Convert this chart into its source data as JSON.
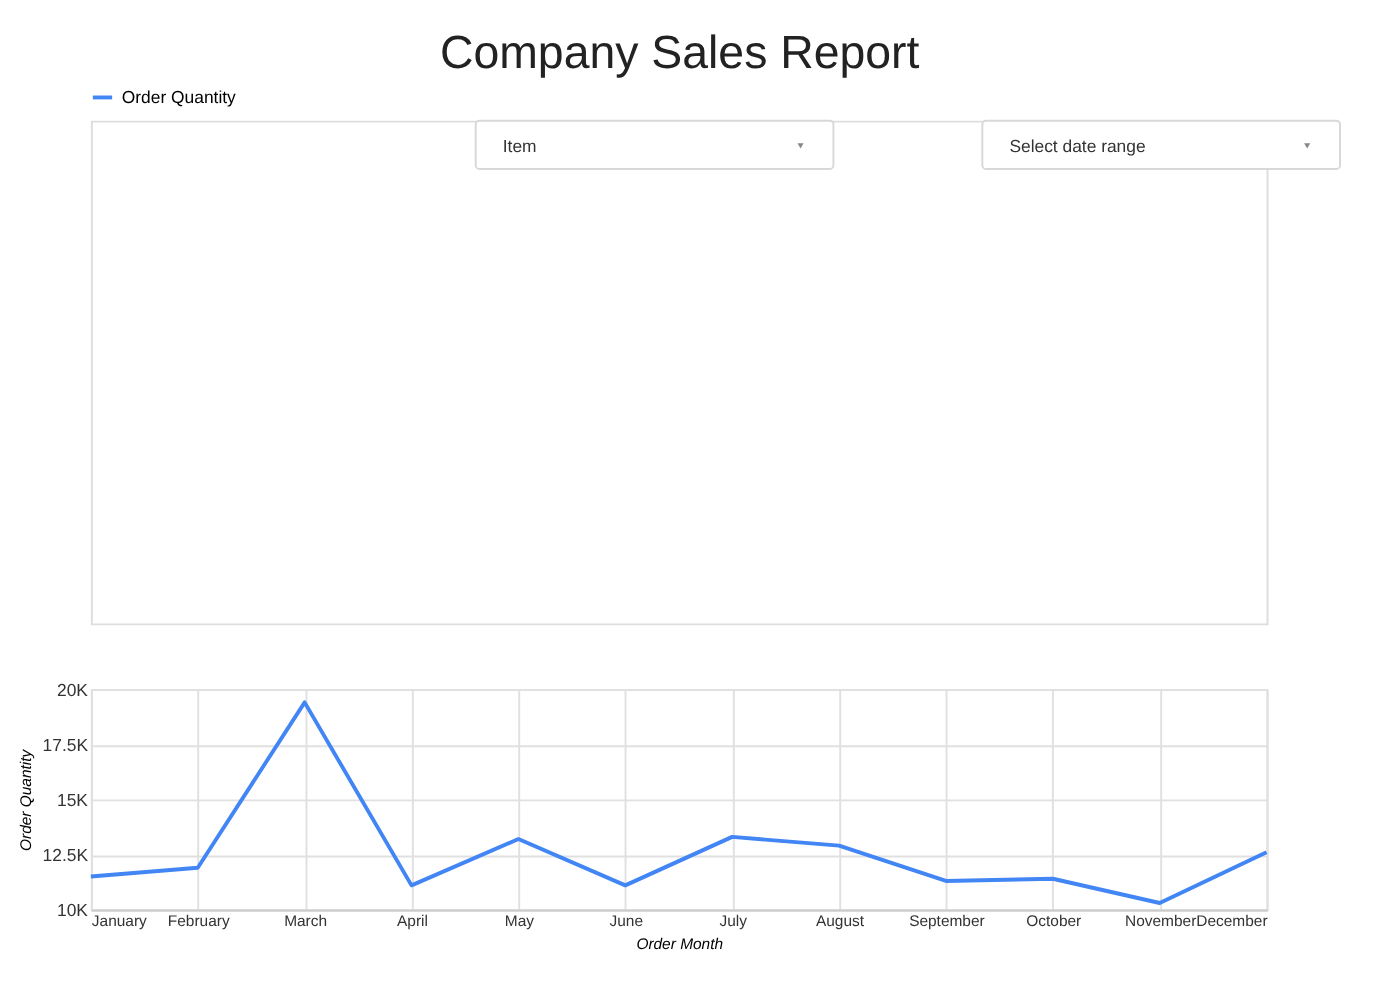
{
  "chart_data": {
    "type": "line",
    "title": "Company Sales Report",
    "annotations": [
      "Item",
      "Select date range"
    ],
    "categories": [
      "January",
      "February",
      "March",
      "April",
      "May",
      "June",
      "July",
      "August",
      "September",
      "October",
      "November",
      "December"
    ],
    "series": [
      {
        "name": "Order Quantity",
        "color": "#4285f4",
        "values": [
          11500,
          11900,
          19400,
          11100,
          13200,
          11100,
          13300,
          12900,
          11300,
          11400,
          10300,
          12600
        ]
      }
    ],
    "xlabel": "Order Month",
    "ylabel": "Order Quantity",
    "ylim": [
      10000,
      20000
    ],
    "yticks": [
      {
        "value": 10000,
        "label": "10K"
      },
      {
        "value": 12500,
        "label": "12.5K"
      },
      {
        "value": 15000,
        "label": "15K"
      },
      {
        "value": 17500,
        "label": "17.5K"
      },
      {
        "value": 20000,
        "label": "20K"
      }
    ],
    "grid": true,
    "legend": "top left",
    "marker": "none",
    "line_style": "solid"
  }
}
